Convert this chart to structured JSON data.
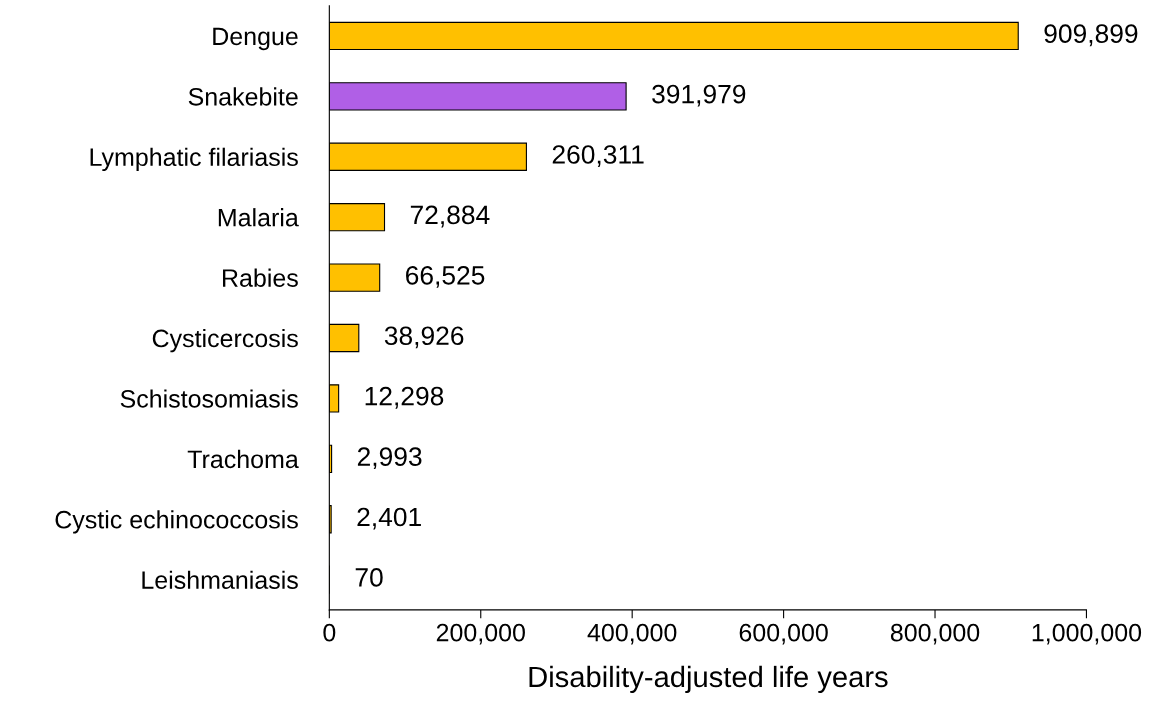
{
  "chart_data": {
    "type": "bar",
    "orientation": "horizontal",
    "xlabel": "Disability-adjusted life years",
    "categories": [
      "Dengue",
      "Snakebite",
      "Lymphatic filariasis",
      "Malaria",
      "Rabies",
      "Cysticercosis",
      "Schistosomiasis",
      "Trachoma",
      "Cystic echinococcosis",
      "Leishmaniasis"
    ],
    "values": [
      909899,
      391979,
      260311,
      72884,
      66525,
      38926,
      12298,
      2993,
      2401,
      70
    ],
    "colors": [
      "#ffc000",
      "#b05fe6",
      "#ffc000",
      "#ffc000",
      "#ffc000",
      "#ffc000",
      "#ffc000",
      "#ffc000",
      "#ffc000",
      "#ffc000"
    ],
    "value_labels": [
      "909,899",
      "391,979",
      "260,311",
      "72,884",
      "66,525",
      "38,926",
      "12,298",
      "2,993",
      "2,401",
      "70"
    ],
    "xlim": [
      0,
      1000000
    ],
    "xticks": [
      0,
      {
        "value": 200000,
        "label": "200,000"
      },
      {
        "value": 400000,
        "label": "400,000"
      },
      {
        "value": 600000,
        "label": "600,000"
      },
      {
        "value": 800000,
        "label": "800,000"
      },
      {
        "value": 1000000,
        "label": "1,000,000"
      }
    ],
    "grid": false
  }
}
